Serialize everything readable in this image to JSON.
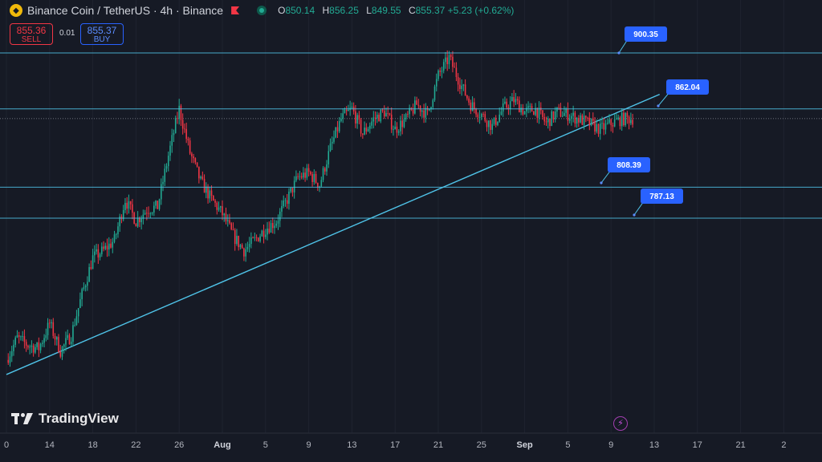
{
  "header": {
    "symbol": "Binance Coin / TetherUS · 4h · Binance",
    "ohlc": [
      {
        "k": "O",
        "v": "850.14"
      },
      {
        "k": "H",
        "v": "856.25"
      },
      {
        "k": "L",
        "v": "849.55"
      },
      {
        "k": "C",
        "v": "855.37 +5.23 (+0.62%)"
      }
    ]
  },
  "trade": {
    "sell_price": "855.36",
    "sell_label": "SELL",
    "spread": "0.01",
    "buy_price": "855.37",
    "buy_label": "BUY"
  },
  "brand": "TradingView",
  "icons": {
    "coin": "binance-coin-icon",
    "flag": "flag-icon",
    "status": "market-status-icon",
    "alert": "flash-icon"
  },
  "colors": {
    "bg": "#161a25",
    "up": "#22ab94",
    "down": "#f23645",
    "level": "#4fc3e8",
    "label": "#2962ff"
  },
  "chart_data": {
    "type": "candlestick",
    "title": "Binance Coin / TetherUS · 4h · Binance",
    "x_tick_labels": [
      "0",
      "14",
      "18",
      "22",
      "26",
      "Aug",
      "5",
      "9",
      "13",
      "17",
      "21",
      "25",
      "Sep",
      "5",
      "9",
      "13",
      "17",
      "21",
      "2"
    ],
    "ylim": [
      680,
      925
    ],
    "horizontal_levels": [
      900.35,
      862.04,
      808.39,
      787.13
    ],
    "level_labels": [
      "900.35",
      "862.04",
      "808.39",
      "787.13"
    ],
    "trendline": {
      "from": {
        "x": "Jul 10",
        "y": 680
      },
      "to": {
        "x": "Sep 9",
        "y": 872
      }
    },
    "close_path_days": [
      0,
      1,
      2,
      3,
      4,
      5,
      6,
      7,
      8,
      9,
      10,
      11,
      12,
      13,
      14,
      15,
      16,
      17,
      18,
      19,
      20,
      21,
      22,
      23,
      24,
      25,
      26,
      27,
      28,
      29,
      30,
      31,
      32,
      33,
      34,
      35,
      36,
      37,
      38,
      39,
      40,
      41,
      42,
      43,
      44,
      45,
      46,
      47,
      48,
      49,
      50,
      51,
      52,
      53,
      54,
      55,
      56,
      57,
      58
    ],
    "close_path": [
      690,
      705,
      700,
      698,
      715,
      696,
      707,
      735,
      760,
      765,
      772,
      800,
      785,
      793,
      795,
      830,
      862,
      832,
      812,
      800,
      790,
      775,
      765,
      772,
      780,
      785,
      800,
      815,
      818,
      810,
      835,
      855,
      862,
      845,
      855,
      860,
      848,
      855,
      865,
      858,
      885,
      897,
      880,
      865,
      858,
      850,
      862,
      868,
      860,
      862,
      852,
      860,
      858,
      855,
      852,
      848,
      852,
      855,
      855.37
    ]
  }
}
